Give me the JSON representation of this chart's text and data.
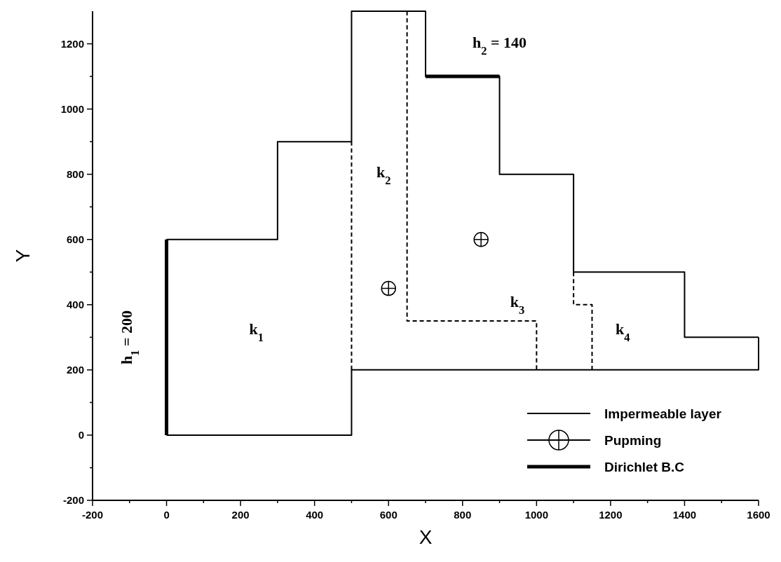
{
  "chart_data": {
    "type": "step",
    "xlabel": "X",
    "ylabel": "Y",
    "xlim": [
      -200,
      1600
    ],
    "ylim": [
      -200,
      1300
    ],
    "xticks": [
      -200,
      {
        "value": -100,
        "label": null
      },
      0,
      {
        "value": 100,
        "label": null
      },
      200,
      {
        "value": 300,
        "label": null
      },
      400,
      {
        "value": 500,
        "label": null
      },
      600,
      {
        "value": 700,
        "label": null
      },
      800,
      {
        "value": 900,
        "label": null
      },
      1000,
      {
        "value": 1100,
        "label": null
      },
      1200,
      {
        "value": 1300,
        "label": null
      },
      1400,
      {
        "value": 1500,
        "label": null
      },
      1600
    ],
    "yticks": [
      -200,
      {
        "value": -100,
        "label": null
      },
      0,
      {
        "value": 100,
        "label": null
      },
      200,
      {
        "value": 300,
        "label": null
      },
      400,
      {
        "value": 500,
        "label": null
      },
      600,
      {
        "value": 700,
        "label": null
      },
      800,
      {
        "value": 900,
        "label": null
      },
      1000,
      {
        "value": 1100,
        "label": null
      },
      1200
    ],
    "grid": false,
    "legend": "bottom right",
    "series": [
      {
        "name": "Impermeable layer",
        "color": "#000000",
        "x": [
          0,
          300,
          500,
          700,
          900,
          1100,
          1400,
          1600
        ],
        "values": [
          600,
          900,
          1300,
          1100,
          800,
          500,
          300,
          300
        ]
      },
      {
        "color": "#000000",
        "x": [
          0,
          500,
          1600
        ],
        "values": [
          0,
          200,
          300
        ]
      },
      {
        "color": "#000000",
        "line_style": "dashed",
        "x": [
          500,
          500
        ],
        "values": [
          200,
          900
        ]
      },
      {
        "color": "#000000",
        "line_style": "dashed",
        "x": [
          650,
          650,
          1000
        ],
        "values": [
          1300,
          350,
          200
        ]
      },
      {
        "color": "#000000",
        "line_style": "dashed",
        "x": [
          1100,
          1100,
          1150
        ],
        "values": [
          500,
          400,
          200
        ]
      },
      {
        "name": "Pupming",
        "type": "scatter",
        "color": "#000000",
        "marker": "cross",
        "x": [
          600,
          850
        ],
        "values": [
          450,
          600
        ]
      },
      {
        "name": "Dirichlet B.C",
        "type": "line",
        "color": "#000000",
        "x": [
          0,
          0
        ],
        "values": [
          0,
          600
        ]
      },
      {
        "type": "line",
        "color": "#000000",
        "x": [
          700,
          900
        ],
        "values": [
          1100,
          1100
        ]
      }
    ],
    "annotations": [
      "k$_{1}$",
      "k$_{2}$",
      "k$_{3}$",
      "k$_{4}$",
      "h$_{1}$ = 200",
      "h$_{2}$ = 140"
    ]
  }
}
